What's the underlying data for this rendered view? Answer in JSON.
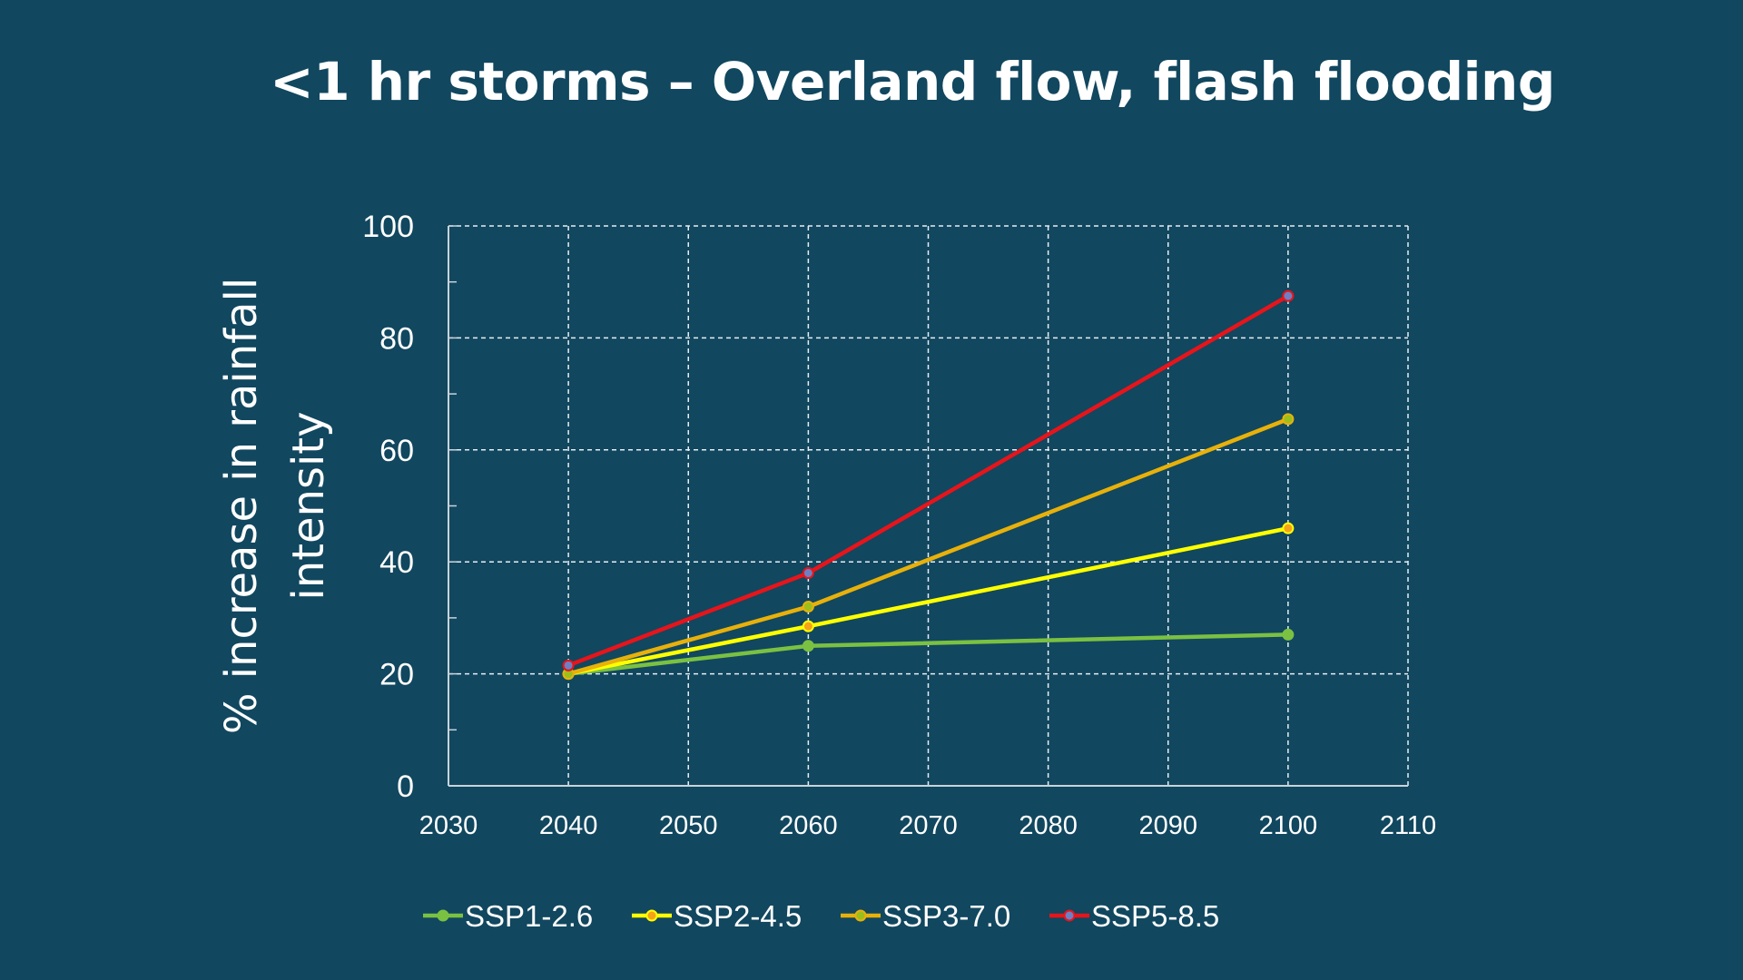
{
  "slide": {
    "title": "<1 hr storms – Overland flow, flash flooding"
  },
  "colors": {
    "background": "#11475f",
    "grid": "#e8eef2",
    "axis": "#c9d3da"
  },
  "chart_data": {
    "type": "line",
    "title": "<1 hr storms – Overland flow, flash flooding",
    "xlabel": "",
    "ylabel_lines": [
      "% increase in rainfall",
      "intensity"
    ],
    "xlim": [
      2030,
      2110
    ],
    "ylim": [
      0,
      100
    ],
    "x_ticks": [
      2030,
      2040,
      2050,
      2060,
      2070,
      2080,
      2090,
      2100,
      2110
    ],
    "y_ticks": [
      0,
      20,
      40,
      60,
      80,
      100
    ],
    "y_minor_step": 10,
    "grid": true,
    "legend_position": "bottom",
    "x": [
      2040,
      2060,
      2100
    ],
    "series": [
      {
        "name": "SSP1-2.6",
        "color": "#7ac142",
        "marker_color": "#7ac142",
        "values": [
          20,
          25,
          27
        ]
      },
      {
        "name": "SSP2-4.5",
        "color": "#ffff00",
        "marker_color": "#f7a21b",
        "values": [
          20,
          28.5,
          46
        ]
      },
      {
        "name": "SSP3-7.0",
        "color": "#e8b10a",
        "marker_color": "#9cbf1c",
        "values": [
          20,
          32,
          65.5
        ]
      },
      {
        "name": "SSP5-8.5",
        "color": "#e8141b",
        "marker_color": "#6f7fc4",
        "values": [
          21.5,
          38,
          87.5
        ]
      }
    ]
  }
}
